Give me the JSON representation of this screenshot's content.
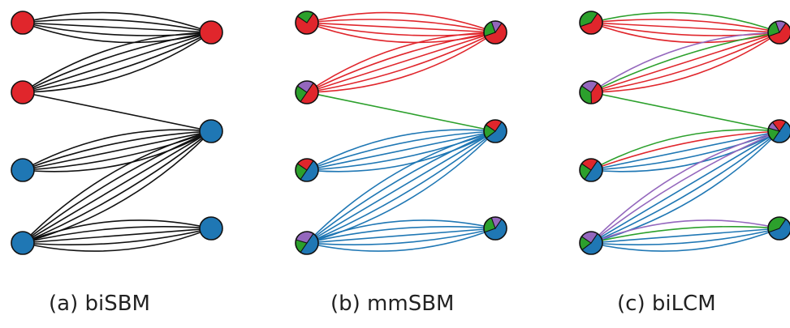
{
  "colors": {
    "red": "#e0262c",
    "blue": "#1f77b4",
    "green": "#2ca02c",
    "purple": "#9467bd",
    "black": "#111111"
  },
  "panels": [
    {
      "caption": "(a) biSBM",
      "left_nodes": [
        {
          "pie": [
            {
              "color": "red",
              "frac": 1
            }
          ]
        },
        {
          "pie": [
            {
              "color": "red",
              "frac": 1
            }
          ]
        },
        {
          "pie": [
            {
              "color": "blue",
              "frac": 1
            }
          ]
        },
        {
          "pie": [
            {
              "color": "blue",
              "frac": 1
            }
          ]
        }
      ],
      "right_nodes": [
        {
          "pie": [
            {
              "color": "red",
              "frac": 1
            }
          ]
        },
        {
          "pie": [
            {
              "color": "blue",
              "frac": 1
            }
          ]
        },
        {
          "pie": [
            {
              "color": "blue",
              "frac": 1
            }
          ]
        }
      ],
      "edges": [
        {
          "from": 0,
          "to": 0,
          "colors": [
            "black",
            "black",
            "black",
            "black",
            "black"
          ]
        },
        {
          "from": 1,
          "to": 0,
          "colors": [
            "black",
            "black",
            "black",
            "black",
            "black"
          ]
        },
        {
          "from": 1,
          "to": 1,
          "colors": [
            "black"
          ]
        },
        {
          "from": 2,
          "to": 1,
          "colors": [
            "black",
            "black",
            "black",
            "black",
            "black"
          ]
        },
        {
          "from": 3,
          "to": 1,
          "colors": [
            "black",
            "black",
            "black",
            "black",
            "black"
          ]
        },
        {
          "from": 3,
          "to": 2,
          "colors": [
            "black",
            "black",
            "black",
            "black",
            "black"
          ]
        }
      ]
    },
    {
      "caption": "(b) mmSBM",
      "left_nodes": [
        {
          "pie": [
            {
              "color": "red",
              "frac": 0.75
            },
            {
              "color": "green",
              "frac": 0.25
            }
          ]
        },
        {
          "pie": [
            {
              "color": "red",
              "frac": 0.5
            },
            {
              "color": "green",
              "frac": 0.25
            },
            {
              "color": "purple",
              "frac": 0.25
            }
          ]
        },
        {
          "pie": [
            {
              "color": "blue",
              "frac": 0.5
            },
            {
              "color": "green",
              "frac": 0.25
            },
            {
              "color": "red",
              "frac": 0.25
            }
          ]
        },
        {
          "pie": [
            {
              "color": "blue",
              "frac": 0.5
            },
            {
              "color": "green",
              "frac": 0.2
            },
            {
              "color": "purple",
              "frac": 0.3
            }
          ]
        }
      ],
      "right_nodes": [
        {
          "pie": [
            {
              "color": "red",
              "frac": 0.6
            },
            {
              "color": "green",
              "frac": 0.25
            },
            {
              "color": "purple",
              "frac": 0.15
            }
          ]
        },
        {
          "pie": [
            {
              "color": "blue",
              "frac": 0.55
            },
            {
              "color": "green",
              "frac": 0.2
            },
            {
              "color": "red",
              "frac": 0.25
            }
          ]
        },
        {
          "pie": [
            {
              "color": "blue",
              "frac": 0.6
            },
            {
              "color": "green",
              "frac": 0.25
            },
            {
              "color": "purple",
              "frac": 0.15
            }
          ]
        }
      ],
      "edges": [
        {
          "from": 0,
          "to": 0,
          "colors": [
            "red",
            "red",
            "red",
            "red",
            "red"
          ]
        },
        {
          "from": 1,
          "to": 0,
          "colors": [
            "red",
            "red",
            "red",
            "red",
            "red"
          ]
        },
        {
          "from": 1,
          "to": 1,
          "colors": [
            "green"
          ]
        },
        {
          "from": 2,
          "to": 1,
          "colors": [
            "blue",
            "blue",
            "blue",
            "blue",
            "blue"
          ]
        },
        {
          "from": 3,
          "to": 1,
          "colors": [
            "blue",
            "blue",
            "blue",
            "blue",
            "blue"
          ]
        },
        {
          "from": 3,
          "to": 2,
          "colors": [
            "blue",
            "blue",
            "blue",
            "blue",
            "blue"
          ]
        }
      ]
    },
    {
      "caption": "(c) biLCM",
      "left_nodes": [
        {
          "pie": [
            {
              "color": "red",
              "frac": 0.6
            },
            {
              "color": "green",
              "frac": 0.4
            }
          ]
        },
        {
          "pie": [
            {
              "color": "red",
              "frac": 0.4
            },
            {
              "color": "green",
              "frac": 0.35
            },
            {
              "color": "purple",
              "frac": 0.25
            }
          ]
        },
        {
          "pie": [
            {
              "color": "blue",
              "frac": 0.5
            },
            {
              "color": "green",
              "frac": 0.25
            },
            {
              "color": "red",
              "frac": 0.25
            }
          ]
        },
        {
          "pie": [
            {
              "color": "blue",
              "frac": 0.55
            },
            {
              "color": "green",
              "frac": 0.2
            },
            {
              "color": "purple",
              "frac": 0.25
            }
          ]
        }
      ],
      "right_nodes": [
        {
          "pie": [
            {
              "color": "red",
              "frac": 0.6
            },
            {
              "color": "green",
              "frac": 0.25
            },
            {
              "color": "purple",
              "frac": 0.15
            }
          ]
        },
        {
          "pie": [
            {
              "color": "blue",
              "frac": 0.5
            },
            {
              "color": "green",
              "frac": 0.2
            },
            {
              "color": "purple",
              "frac": 0.1
            },
            {
              "color": "red",
              "frac": 0.2
            }
          ]
        },
        {
          "pie": [
            {
              "color": "blue",
              "frac": 0.6
            },
            {
              "color": "green",
              "frac": 0.4
            }
          ]
        }
      ],
      "edges": [
        {
          "from": 0,
          "to": 0,
          "colors": [
            "green",
            "red",
            "red",
            "red",
            "red"
          ]
        },
        {
          "from": 1,
          "to": 0,
          "colors": [
            "purple",
            "green",
            "red",
            "red",
            "red"
          ]
        },
        {
          "from": 1,
          "to": 1,
          "colors": [
            "green"
          ]
        },
        {
          "from": 2,
          "to": 1,
          "colors": [
            "green",
            "red",
            "blue",
            "blue",
            "blue"
          ]
        },
        {
          "from": 3,
          "to": 1,
          "colors": [
            "purple",
            "purple",
            "blue",
            "blue",
            "blue"
          ]
        },
        {
          "from": 3,
          "to": 2,
          "colors": [
            "purple",
            "green",
            "blue",
            "blue",
            "blue"
          ]
        }
      ]
    }
  ]
}
